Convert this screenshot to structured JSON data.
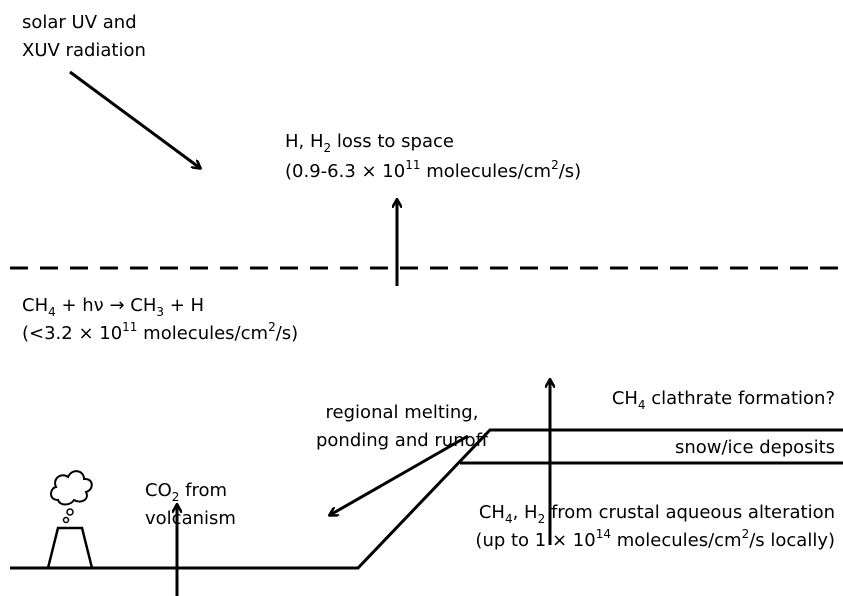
{
  "solar": {
    "lines": [
      "solar UV and",
      "XUV radiation"
    ]
  },
  "h_loss": {
    "line1": [
      "H, H",
      "2",
      " loss to space"
    ],
    "line2": [
      "(0.9-6.3 × 10",
      "11",
      " molecules/cm",
      "2",
      "/s)"
    ]
  },
  "photolysis": {
    "line1": [
      "CH",
      "4",
      " + hν → CH",
      "3",
      " + H"
    ],
    "line2": [
      "(<3.2 × 10",
      "11",
      " molecules/cm",
      "2",
      "/s)"
    ]
  },
  "melting": {
    "lines": [
      "regional melting,",
      "ponding and runoff"
    ]
  },
  "clathrate": [
    "CH",
    "4",
    " clathrate formation?"
  ],
  "snow": "snow/ice deposits",
  "co2": {
    "line1": [
      "CO",
      "2",
      " from"
    ],
    "line2": "volcanism"
  },
  "crustal": {
    "line1": [
      "CH",
      "4",
      ", H",
      "2",
      " from crustal aqueous alteration"
    ],
    "line2": [
      "(up to 1 × 10",
      "14",
      " molecules/cm",
      "2",
      "/s locally)"
    ]
  }
}
